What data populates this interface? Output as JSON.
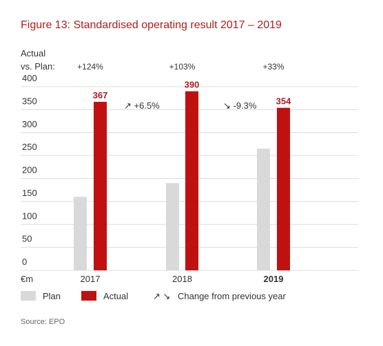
{
  "chart_data": {
    "type": "bar",
    "title": "Figure 13: Standardised operating result 2017 – 2019",
    "header_line1": "Actual",
    "header_line2": "vs. Plan:",
    "unit_label": "€m",
    "categories": [
      "2017",
      "2018",
      "2019"
    ],
    "series": [
      {
        "name": "Plan",
        "values": [
          160,
          190,
          265
        ],
        "color": "#d9d9d9"
      },
      {
        "name": "Actual",
        "values": [
          367,
          390,
          354
        ],
        "color": "#c01111"
      }
    ],
    "actual_vs_plan": [
      "+124%",
      "+103%",
      "+33%"
    ],
    "changes": [
      {
        "text": "+6.5%",
        "direction": "up"
      },
      {
        "text": "-9.3%",
        "direction": "down"
      }
    ],
    "y_ticks": [
      0,
      50,
      100,
      150,
      200,
      250,
      300,
      350,
      400
    ],
    "ylim": [
      0,
      400
    ],
    "grid": true,
    "legend": {
      "plan": "Plan",
      "actual": "Actual",
      "change_arrows": "↗ ↘",
      "change": "Change from previous year"
    },
    "source": "Source: EPO"
  }
}
